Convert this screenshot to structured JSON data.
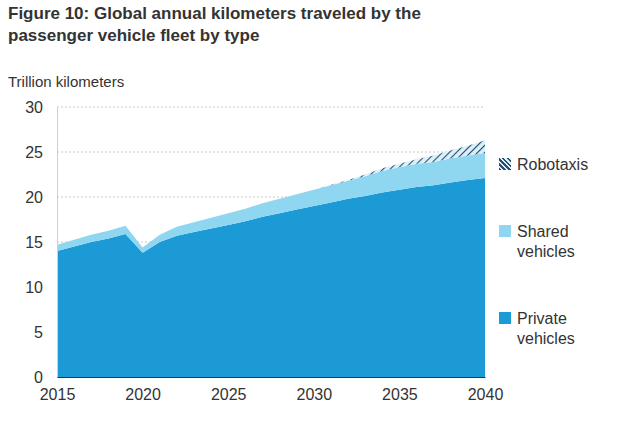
{
  "chart_data": {
    "type": "area",
    "title": "Figure 10: Global annual kilometers traveled by the passenger vehicle fleet by type",
    "y_label": "Trillion kilometers",
    "x": [
      2015,
      2016,
      2017,
      2018,
      2019,
      2020,
      2021,
      2022,
      2023,
      2024,
      2025,
      2026,
      2027,
      2028,
      2029,
      2030,
      2031,
      2032,
      2033,
      2034,
      2035,
      2036,
      2037,
      2038,
      2039,
      2040
    ],
    "series": [
      {
        "name": "Private vehicles",
        "color": "#1c9ad6",
        "values": [
          14.0,
          14.5,
          15.0,
          15.4,
          15.9,
          13.8,
          15.0,
          15.7,
          16.1,
          16.5,
          16.9,
          17.3,
          17.8,
          18.2,
          18.6,
          19.0,
          19.4,
          19.8,
          20.1,
          20.5,
          20.8,
          21.1,
          21.3,
          21.6,
          21.9,
          22.1
        ]
      },
      {
        "name": "Shared vehicles",
        "color": "#8fd6f1",
        "values": [
          0.7,
          0.75,
          0.8,
          0.85,
          0.9,
          0.6,
          0.8,
          1.0,
          1.1,
          1.2,
          1.3,
          1.4,
          1.5,
          1.6,
          1.7,
          1.8,
          1.9,
          2.0,
          2.2,
          2.4,
          2.5,
          2.6,
          2.6,
          2.7,
          2.7,
          2.8
        ]
      },
      {
        "name": "Robotaxis",
        "color": "#2e4d6e",
        "line_style": "hatched",
        "values": [
          0,
          0,
          0,
          0,
          0,
          0,
          0,
          0,
          0,
          0,
          0,
          0,
          0,
          0,
          0,
          0,
          0.05,
          0.1,
          0.2,
          0.3,
          0.4,
          0.5,
          0.7,
          0.9,
          1.1,
          1.4
        ]
      }
    ],
    "xlim": [
      2015,
      2040
    ],
    "xticks": [
      2015,
      2020,
      2025,
      2030,
      2035,
      2040
    ],
    "ylim": [
      0,
      30
    ],
    "yticks": [
      0,
      5,
      10,
      15,
      20,
      25,
      30
    ],
    "stacked": true,
    "grid": true,
    "legend": "right"
  }
}
